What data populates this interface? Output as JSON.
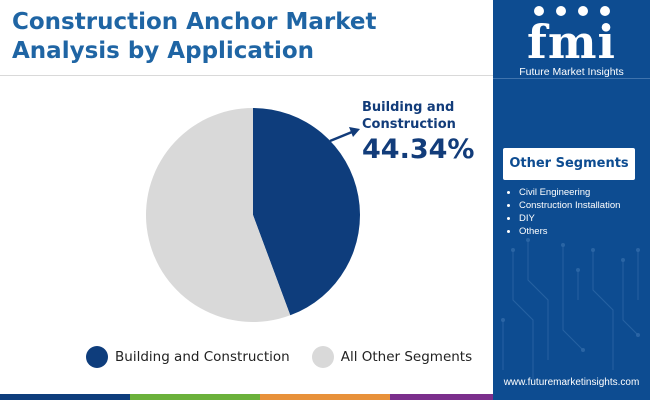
{
  "title": {
    "line1": "Construction Anchor Market",
    "line2": "Analysis by Application"
  },
  "chart_data": {
    "type": "pie",
    "title": "Construction Anchor Market Analysis by Application",
    "slices": [
      {
        "label": "Building and Construction",
        "value": 44.34,
        "color": "#0e3d7c"
      },
      {
        "label": "All Other Segments",
        "value": 55.66,
        "color": "#d9d9d9"
      }
    ],
    "annotations": [
      {
        "label": "Building and Construction",
        "value_text": "44.34%"
      }
    ],
    "legend": "bottom"
  },
  "callout": {
    "label": "Building and Construction",
    "value": "44.34%"
  },
  "legend": {
    "items": [
      {
        "label": "Building and Construction",
        "color": "#0e3d7c"
      },
      {
        "label": "All Other Segments",
        "color": "#d9d9d9"
      }
    ]
  },
  "sidebar": {
    "brand_mark": "fmi",
    "brand_name": "Future Market Insights",
    "segments_heading": "Other Segments",
    "segments": [
      "Civil Engineering",
      "Construction Installation",
      "DIY",
      "Others"
    ],
    "website": "www.futuremarketinsights.com"
  },
  "bottom_bar_colors": [
    "#0e3d7c",
    "#6bb13b",
    "#e8913a",
    "#7b2f8c",
    "#0e3d7c"
  ]
}
